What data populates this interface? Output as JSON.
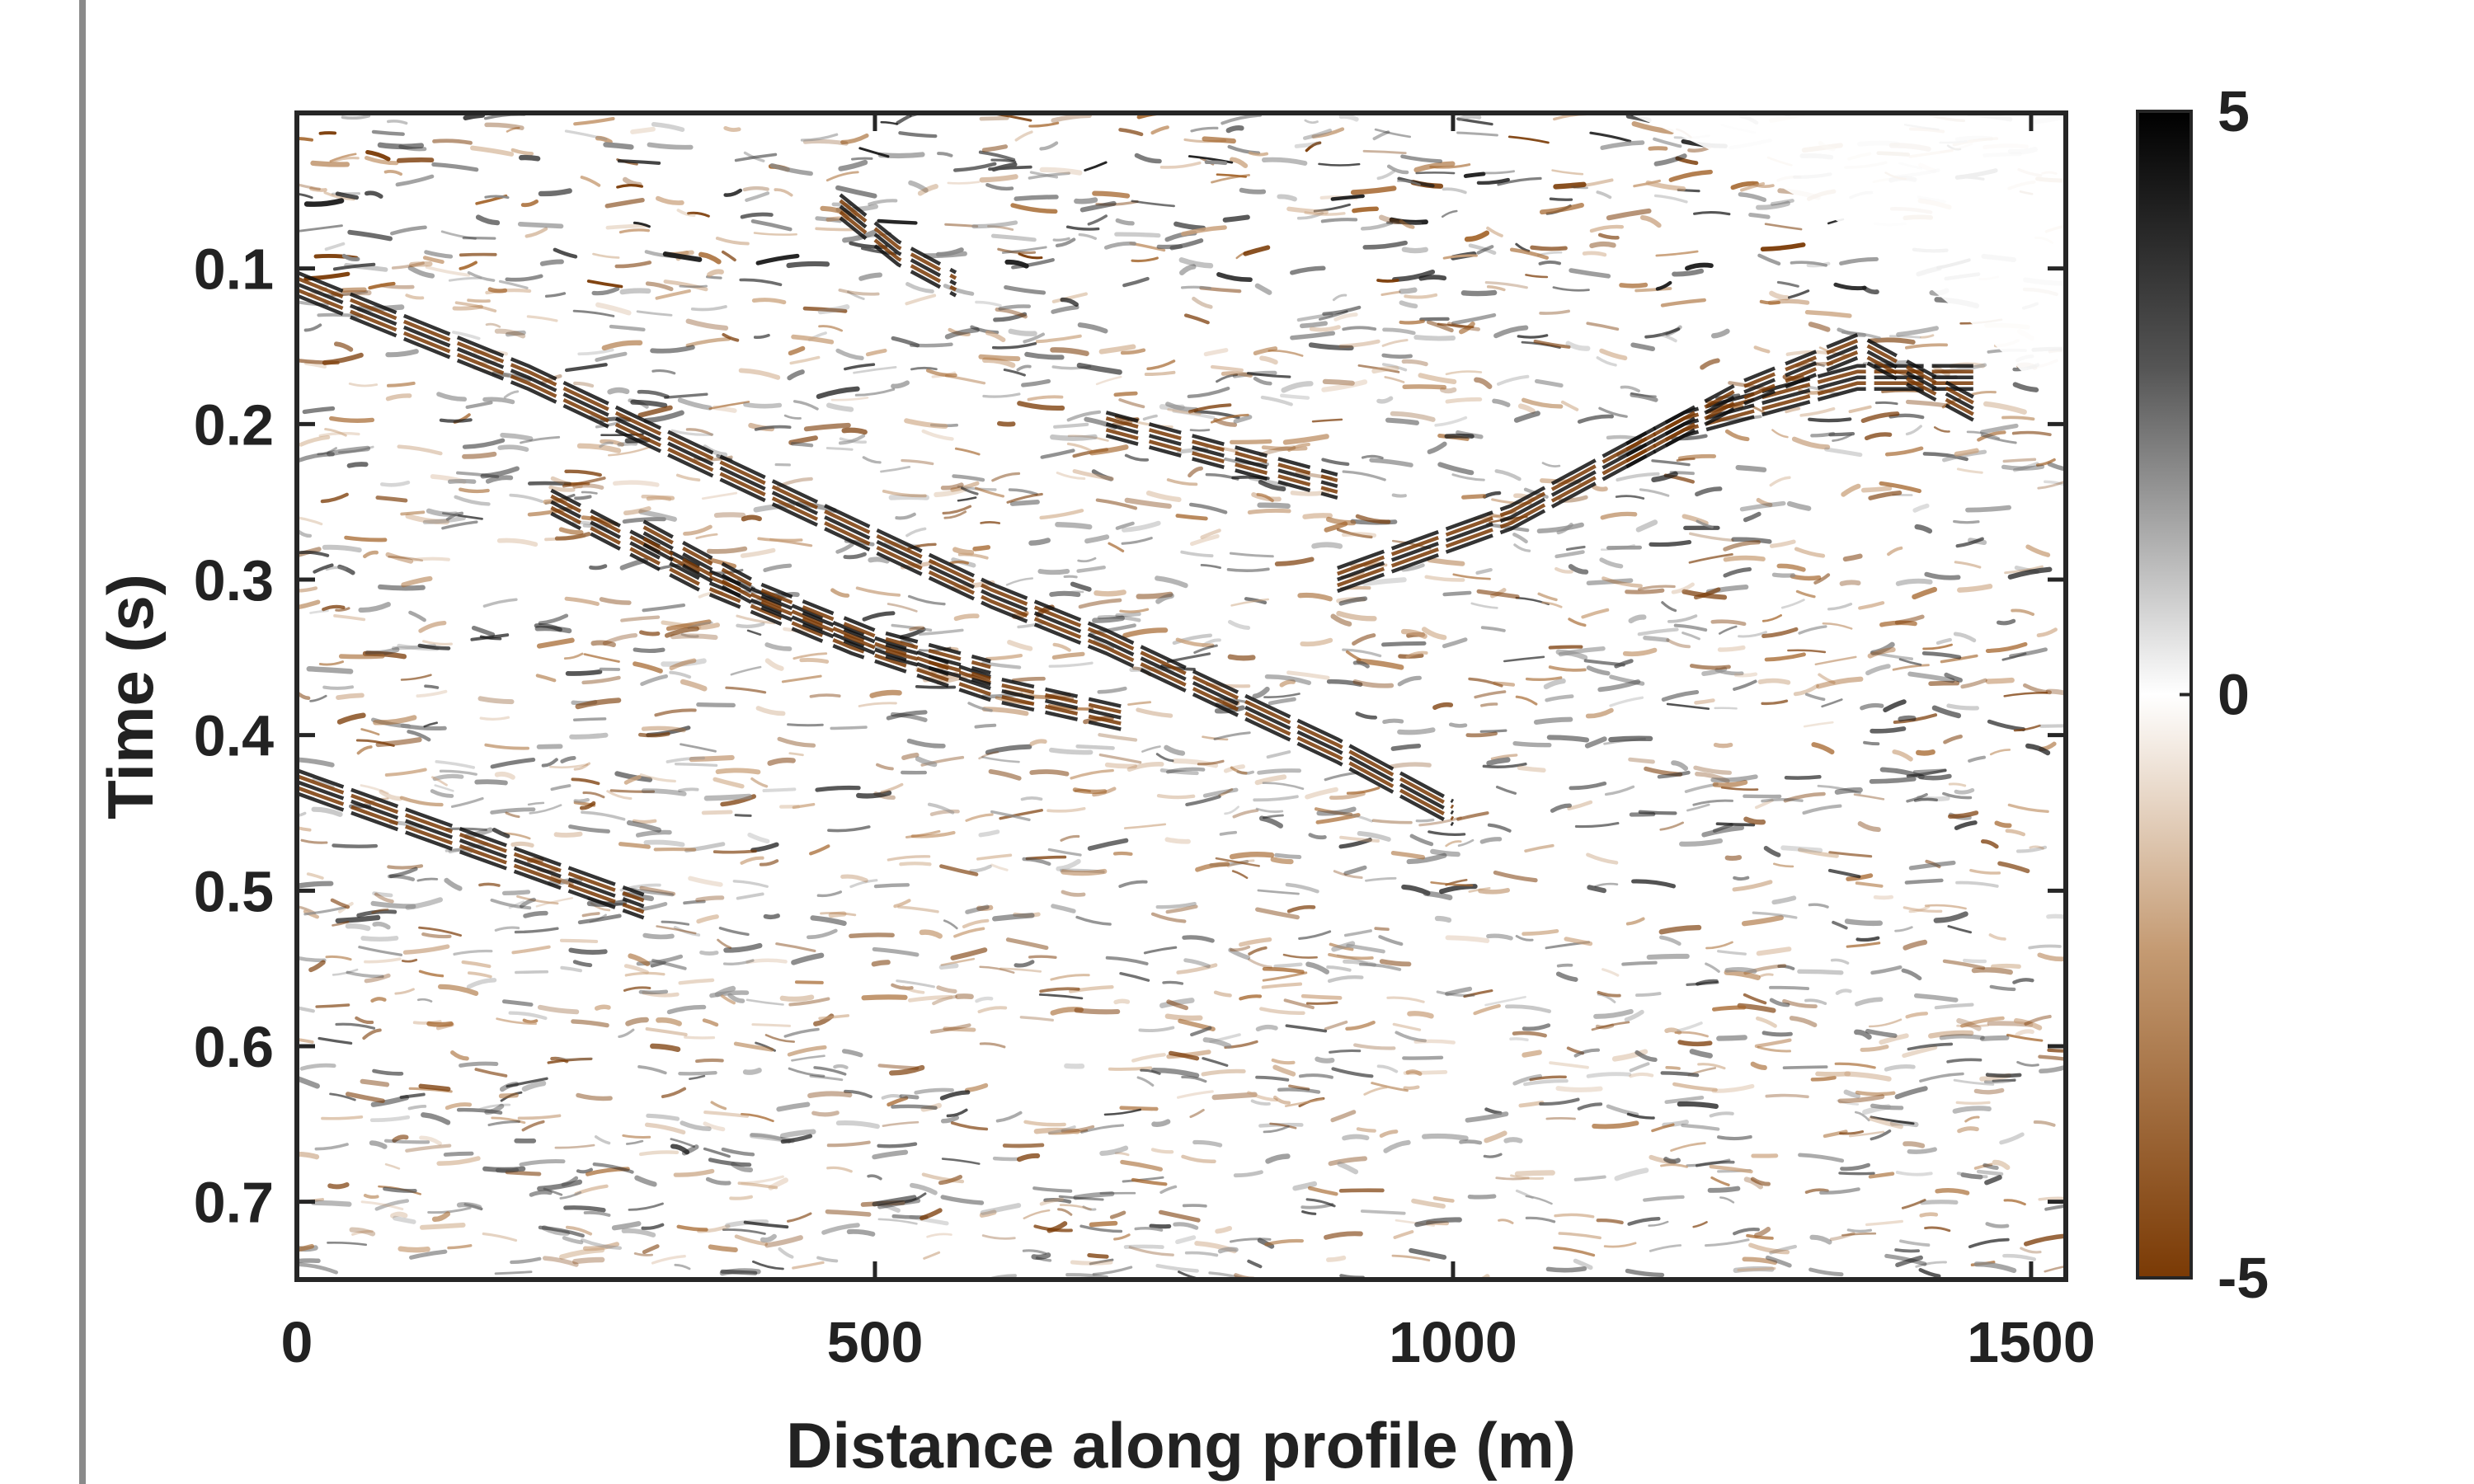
{
  "chart_data": {
    "type": "heatmap",
    "title": "",
    "xlabel": "Distance along profile (m)",
    "ylabel": "Time (s)",
    "xlim": [
      0,
      1530
    ],
    "ylim": [
      0.0,
      0.75
    ],
    "y_reversed": true,
    "x_ticks": [
      0,
      500,
      1000,
      1500
    ],
    "x_tick_labels": [
      "0",
      "500",
      "1000",
      "1500"
    ],
    "y_ticks": [
      0.1,
      0.2,
      0.3,
      0.4,
      0.5,
      0.6,
      0.7
    ],
    "y_tick_labels": [
      "0.1",
      "0.2",
      "0.3",
      "0.4",
      "0.5",
      "0.6",
      "0.7"
    ],
    "grid": false,
    "colorbar": {
      "min": -5,
      "max": 5,
      "ticks": [
        5,
        0,
        -5
      ],
      "tick_labels": [
        "5",
        "0",
        "-5"
      ],
      "colors": {
        "max": "#000000",
        "mid": "#ffffff",
        "min": "#7a3a05"
      }
    },
    "reflectors": [
      {
        "x": [
          0,
          200,
          400,
          600,
          700,
          900,
          1000
        ],
        "y": [
          0.11,
          0.17,
          0.24,
          0.31,
          0.34,
          0.41,
          0.45
        ]
      },
      {
        "x": [
          220,
          350,
          480,
          600,
          720
        ],
        "y": [
          0.25,
          0.3,
          0.34,
          0.37,
          0.39
        ]
      },
      {
        "x": [
          300,
          400,
          500,
          600
        ],
        "y": [
          0.27,
          0.31,
          0.34,
          0.36
        ]
      },
      {
        "x": [
          900,
          1050,
          1200,
          1350,
          1450
        ],
        "y": [
          0.3,
          0.26,
          0.2,
          0.17,
          0.17
        ]
      },
      {
        "x": [
          1150,
          1250,
          1350,
          1450
        ],
        "y": [
          0.22,
          0.18,
          0.15,
          0.19
        ]
      },
      {
        "x": [
          470,
          520,
          570
        ],
        "y": [
          0.06,
          0.09,
          0.11
        ]
      },
      {
        "x": [
          0,
          150,
          300
        ],
        "y": [
          0.43,
          0.47,
          0.51
        ]
      },
      {
        "x": [
          700,
          800,
          900
        ],
        "y": [
          0.2,
          0.22,
          0.24
        ]
      }
    ],
    "blank_region": {
      "x": [
        1150,
        1530
      ],
      "y_top": [
        0.0,
        0.0
      ],
      "y_bottom": [
        0.0,
        0.2
      ]
    }
  }
}
